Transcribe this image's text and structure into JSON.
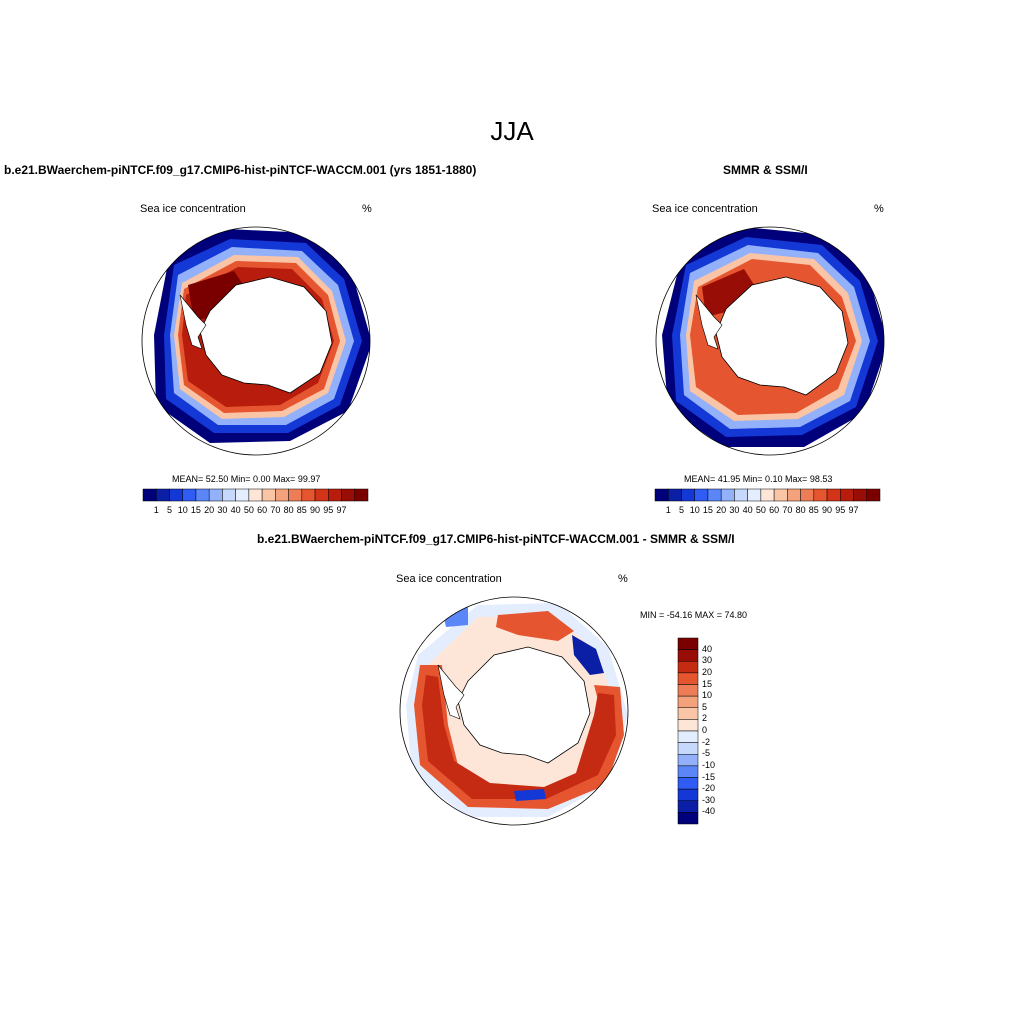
{
  "figure": {
    "title": "JJA"
  },
  "colors": {
    "ocean_bg": "#ffffff",
    "land": "#ffffff",
    "outline": "#000000",
    "conc_levels": [
      "#00007a",
      "#0a1fa6",
      "#1438d6",
      "#2f5cf4",
      "#5a86f7",
      "#92b1fa",
      "#c6d8fc",
      "#e4edfd",
      "#fde6d8",
      "#f9c5a6",
      "#f4a27c",
      "#ee7d57",
      "#e5552f",
      "#d33418",
      "#b81c0c",
      "#980d05",
      "#7a0000"
    ],
    "diff_levels": [
      "#00007a",
      "#0a1fa6",
      "#1438d6",
      "#2f5cf4",
      "#5a86f7",
      "#92b1fa",
      "#c6d8fc",
      "#e4edfd",
      "#fde6d8",
      "#f9c5a6",
      "#f4a27c",
      "#ee7d57",
      "#e5552f",
      "#c52a12",
      "#980d05",
      "#7a0000"
    ]
  },
  "panels": {
    "model": {
      "title": "b.e21.BWaerchem-piNTCF.f09_g17.CMIP6-hist-piNTCF-WACCM.001 (yrs 1851-1880)",
      "variable": "Sea ice concentration",
      "units": "%",
      "stats": "MEAN=  52.50  Min=    0.00  Max=  99.97",
      "colorbar_labels": [
        "1",
        "5",
        "10",
        "15",
        "20",
        "30",
        "40",
        "50",
        "60",
        "70",
        "80",
        "85",
        "90",
        "95",
        "97"
      ]
    },
    "obs": {
      "title": "SMMR & SSM/I",
      "variable": "Sea ice concentration",
      "units": "%",
      "stats": "MEAN=  41.95  Min=    0.10  Max=  98.53",
      "colorbar_labels": [
        "1",
        "5",
        "10",
        "15",
        "20",
        "30",
        "40",
        "50",
        "60",
        "70",
        "80",
        "85",
        "90",
        "95",
        "97"
      ]
    },
    "diff": {
      "title": "b.e21.BWaerchem-piNTCF.f09_g17.CMIP6-hist-piNTCF-WACCM.001 - SMMR & SSM/I",
      "variable": "Sea ice concentration",
      "units": "%",
      "minmax": "MIN = -54.16 MAX =  74.80",
      "colorbar_labels": [
        "40",
        "30",
        "20",
        "15",
        "10",
        "5",
        "2",
        "0",
        "-2",
        "-5",
        "-10",
        "-15",
        "-20",
        "-30",
        "-40"
      ]
    }
  }
}
